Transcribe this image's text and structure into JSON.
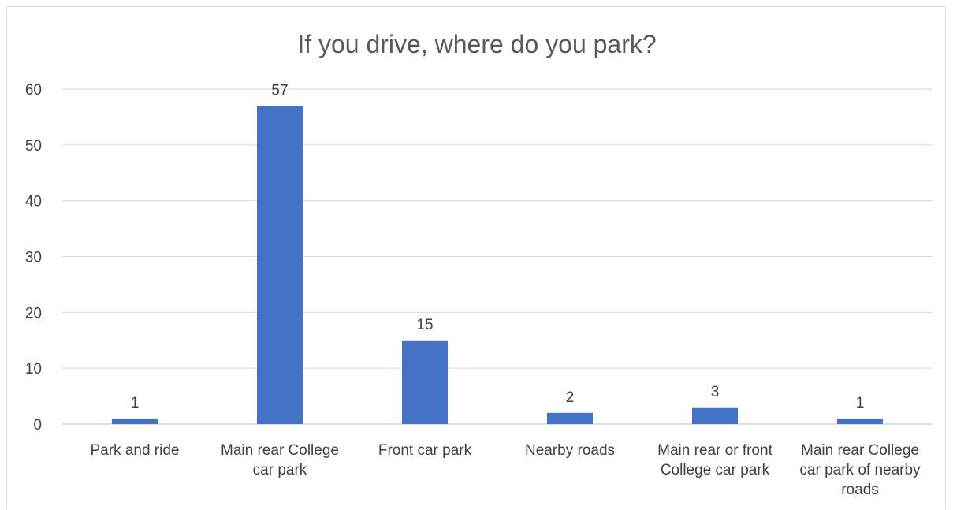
{
  "chart_data": {
    "type": "bar",
    "title": "If you drive, where do you park?",
    "categories": [
      [
        "Park and ride"
      ],
      [
        "Main rear College",
        "car park"
      ],
      [
        "Front car park"
      ],
      [
        "Nearby roads"
      ],
      [
        "Main rear or front",
        "College car park"
      ],
      [
        "Main rear College",
        "car park of nearby",
        "roads"
      ]
    ],
    "values": [
      1,
      57,
      15,
      2,
      3,
      1
    ],
    "data_labels": [
      "1",
      "57",
      "15",
      "2",
      "3",
      "1"
    ],
    "ylim": [
      0,
      60
    ],
    "yticks": [
      0,
      10,
      20,
      30,
      40,
      50,
      60
    ],
    "xlabel": "",
    "ylabel": "",
    "grid": true,
    "legend": "none",
    "bar_color": "#4472C4",
    "grid_color": "#d9d9d9",
    "text_color": "#404040"
  }
}
